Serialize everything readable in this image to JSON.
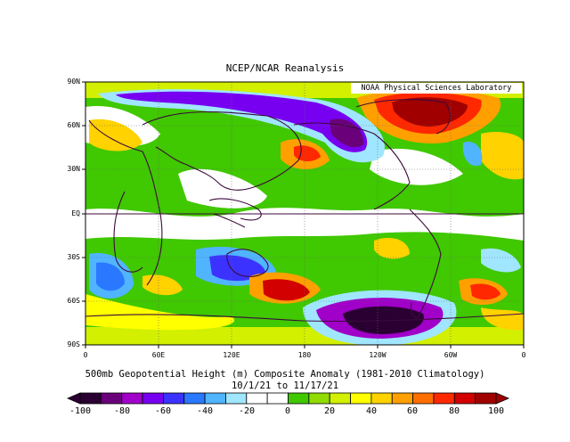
{
  "header": {
    "title": "NCEP/NCAR Reanalysis",
    "credit": "NOAA Physical Sciences Laboratory"
  },
  "axes": {
    "lat_labels": [
      "90N",
      "60N",
      "30N",
      "EQ",
      "30S",
      "60S",
      "90S"
    ],
    "lon_labels": [
      "0",
      "60E",
      "120E",
      "180",
      "120W",
      "60W",
      "0"
    ]
  },
  "caption": {
    "line1": "500mb Geopotential Height (m) Composite Anomaly (1981-2010 Climatology)",
    "line2": "10/1/21  to 11/17/21"
  },
  "colorbar": {
    "ticks": [
      "-100",
      "-80",
      "-60",
      "-40",
      "-20",
      "0",
      "20",
      "40",
      "60",
      "80",
      "100"
    ],
    "colors": [
      "#2a0033",
      "#6a007a",
      "#a000c8",
      "#7800f0",
      "#3c32ff",
      "#2a78ff",
      "#50b4ff",
      "#a0e6ff",
      "#ffffff",
      "#ffffff",
      "#40c800",
      "#90dc00",
      "#d2f000",
      "#ffff00",
      "#ffd200",
      "#ffa000",
      "#ff6e00",
      "#ff2800",
      "#d20000",
      "#a00000"
    ]
  },
  "map": {
    "background_color": "#40c800",
    "anomaly_regions": [
      {
        "name": "arctic-high-north-america",
        "color": "#a00000"
      },
      {
        "name": "north-pacific-low",
        "color": "#6a007a"
      },
      {
        "name": "south-pacific-low",
        "color": "#2a0033"
      },
      {
        "name": "south-pacific-high",
        "color": "#d20000"
      },
      {
        "name": "indian-ocean-low",
        "color": "#3c32ff"
      },
      {
        "name": "equatorial-band",
        "color": "#ffffff"
      }
    ]
  }
}
